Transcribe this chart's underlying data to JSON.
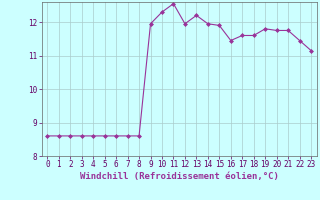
{
  "xlabel": "Windchill (Refroidissement éolien,°C)",
  "x": [
    0,
    1,
    2,
    3,
    4,
    5,
    6,
    7,
    8,
    9,
    10,
    11,
    12,
    13,
    14,
    15,
    16,
    17,
    18,
    19,
    20,
    21,
    22,
    23
  ],
  "y": [
    8.6,
    8.6,
    8.6,
    8.6,
    8.6,
    8.6,
    8.6,
    8.6,
    8.6,
    11.95,
    12.3,
    12.55,
    11.95,
    12.2,
    11.95,
    11.9,
    11.45,
    11.6,
    11.6,
    11.8,
    11.75,
    11.75,
    11.45,
    11.15
  ],
  "line_color": "#993399",
  "marker": "D",
  "marker_size": 2,
  "bg_color": "#ccffff",
  "grid_color": "#aacccc",
  "ylim": [
    8.0,
    12.6
  ],
  "xlim": [
    -0.5,
    23.5
  ],
  "yticks": [
    8,
    9,
    10,
    11,
    12
  ],
  "xticks": [
    0,
    1,
    2,
    3,
    4,
    5,
    6,
    7,
    8,
    9,
    10,
    11,
    12,
    13,
    14,
    15,
    16,
    17,
    18,
    19,
    20,
    21,
    22,
    23
  ],
  "tick_fontsize": 5.5,
  "xlabel_fontsize": 6.5
}
